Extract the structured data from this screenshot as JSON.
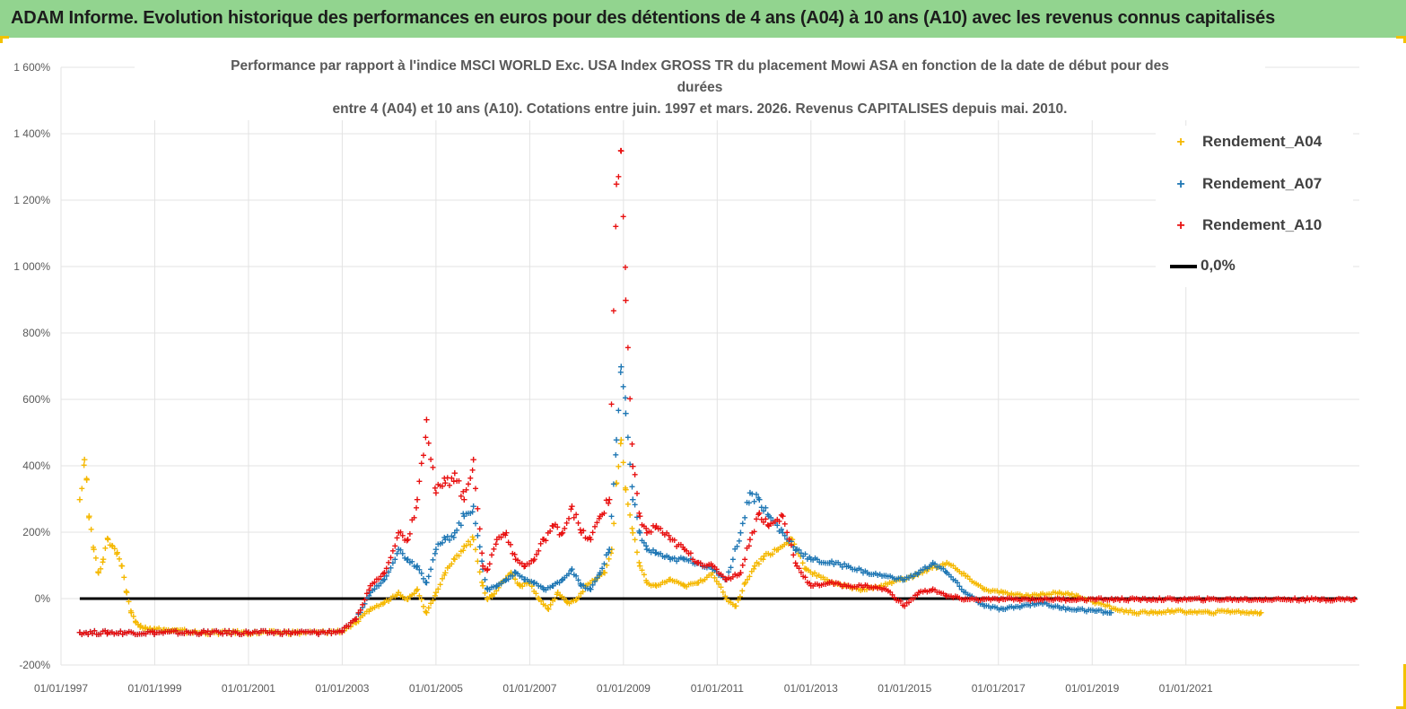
{
  "header": {
    "title": "ADAM Informe. Evolution historique des performances en euros pour des détentions de 4 ans (A04) à 10 ans (A10) avec les revenus connus capitalisés"
  },
  "chart_data": {
    "type": "scatter",
    "title_lines": [
      "Performance par rapport à l'indice MSCI WORLD Exc. USA Index GROSS TR  du placement Mowi ASA en fonction de la date de début pour des",
      "durées",
      "entre 4 (A04) et 10 ans (A10). Cotations entre juin. 1997 et mars. 2026. Revenus CAPITALISES depuis mai. 2010."
    ],
    "xlabel": "",
    "ylabel": "",
    "x_tick_labels": [
      "01/01/1997",
      "01/01/1999",
      "01/01/2001",
      "01/01/2003",
      "01/01/2005",
      "01/01/2007",
      "01/01/2009",
      "01/01/2011",
      "01/01/2013",
      "01/01/2015",
      "01/01/2017",
      "01/01/2019",
      "01/01/2021"
    ],
    "x_tick_years": [
      1997,
      1999,
      2001,
      2003,
      2005,
      2007,
      2009,
      2011,
      2013,
      2015,
      2017,
      2019,
      2021
    ],
    "xlim": [
      1997,
      2024.7
    ],
    "y_tick_labels": [
      "-200%",
      "0%",
      "200%",
      "400%",
      "600%",
      "800%",
      "1 000%",
      "1 200%",
      "1 400%",
      "1 600%"
    ],
    "y_tick_values": [
      -200,
      0,
      200,
      400,
      600,
      800,
      1000,
      1200,
      1400,
      1600
    ],
    "ylim": [
      -200,
      1600
    ],
    "grid": true,
    "legend_position": "top-right",
    "series": [
      {
        "name": "Rendement_A04",
        "color": "#f5b800",
        "marker": "+",
        "x": [
          1997.4,
          1997.5,
          1997.55,
          1997.6,
          1997.7,
          1997.8,
          1997.9,
          1998.0,
          1998.1,
          1998.2,
          1998.3,
          1998.4,
          1998.5,
          1998.6,
          1998.7,
          1998.8,
          1998.9,
          1999.0,
          1999.2,
          1999.5,
          2000.0,
          2001.0,
          2002.0,
          2002.5,
          2003.0,
          2003.3,
          2003.6,
          2003.9,
          2004.2,
          2004.4,
          2004.6,
          2004.8,
          2005.0,
          2005.2,
          2005.4,
          2005.6,
          2005.8,
          2006.0,
          2006.1,
          2006.2,
          2006.4,
          2006.6,
          2006.8,
          2007.0,
          2007.2,
          2007.4,
          2007.6,
          2007.8,
          2008.0,
          2008.2,
          2008.4,
          2008.6,
          2008.75,
          2008.85,
          2008.95,
          2009.05,
          2009.2,
          2009.35,
          2009.5,
          2009.7,
          2010.0,
          2010.3,
          2010.6,
          2010.9,
          2011.2,
          2011.4,
          2011.6,
          2011.8,
          2012.0,
          2012.3,
          2012.6,
          2012.9,
          2013.3,
          2013.7,
          2014.1,
          2014.5,
          2014.9,
          2015.2,
          2015.5,
          2015.9,
          2016.3,
          2016.7,
          2017.1,
          2017.5,
          2017.9,
          2018.3,
          2018.7,
          2019.1,
          2019.5,
          2019.9,
          2020.3,
          2020.7,
          2021.1,
          2021.5,
          2021.9,
          2022.3,
          2022.6
        ],
        "y": [
          300,
          420,
          360,
          250,
          150,
          80,
          120,
          180,
          160,
          140,
          100,
          20,
          -40,
          -70,
          -80,
          -85,
          -88,
          -90,
          -92,
          -95,
          -100,
          -100,
          -100,
          -100,
          -95,
          -70,
          -30,
          -10,
          20,
          0,
          30,
          -40,
          20,
          80,
          120,
          160,
          180,
          40,
          0,
          10,
          50,
          80,
          40,
          50,
          0,
          -30,
          20,
          -10,
          0,
          40,
          60,
          80,
          150,
          350,
          480,
          330,
          200,
          100,
          50,
          40,
          60,
          40,
          50,
          80,
          0,
          -20,
          50,
          100,
          130,
          150,
          180,
          90,
          60,
          40,
          30,
          40,
          60,
          70,
          90,
          110,
          70,
          30,
          20,
          10,
          15,
          20,
          10,
          -10,
          -30,
          -40,
          -40,
          -35,
          -38,
          -40,
          -35,
          -40,
          -40
        ],
        "y_vals": [
          300,
          420,
          360,
          250,
          150,
          80,
          120,
          180,
          160,
          140,
          100,
          20,
          -40,
          -70,
          -80,
          -85,
          -88,
          -90,
          -92,
          -95,
          -100,
          -100,
          -100,
          -100,
          -95,
          -70,
          -30,
          -10,
          20,
          0,
          30,
          -40,
          20,
          80,
          120,
          160,
          180,
          40,
          0,
          10,
          50,
          80,
          40,
          50,
          0,
          -30,
          20,
          -10,
          0,
          40,
          60,
          80,
          150,
          350,
          480,
          330,
          200,
          100,
          50,
          40,
          60,
          40,
          50,
          80,
          0,
          -20,
          50,
          100,
          130,
          150,
          180,
          90,
          60,
          40,
          30,
          40,
          60,
          70,
          90,
          110,
          70,
          30,
          20,
          10,
          15,
          20,
          10,
          -10,
          -30,
          -40,
          -40,
          -35,
          -38,
          -40,
          -35,
          -40,
          -40
        ]
      },
      {
        "name": "Rendement_A07",
        "color": "#1f77b4",
        "marker": "+",
        "x": [
          1997.4,
          1998.0,
          1999.0,
          2000.0,
          2001.0,
          2002.0,
          2002.5,
          2003.0,
          2003.3,
          2003.6,
          2003.9,
          2004.2,
          2004.4,
          2004.6,
          2004.8,
          2005.0,
          2005.2,
          2005.4,
          2005.6,
          2005.8,
          2006.0,
          2006.1,
          2006.3,
          2006.5,
          2006.7,
          2006.9,
          2007.1,
          2007.3,
          2007.5,
          2007.7,
          2007.9,
          2008.1,
          2008.3,
          2008.5,
          2008.7,
          2008.85,
          2008.95,
          2009.05,
          2009.2,
          2009.35,
          2009.5,
          2009.7,
          2010.0,
          2010.3,
          2010.6,
          2010.9,
          2011.2,
          2011.5,
          2011.7,
          2011.9,
          2012.1,
          2012.4,
          2012.7,
          2013.0,
          2013.4,
          2013.8,
          2014.2,
          2014.6,
          2015.0,
          2015.3,
          2015.6,
          2015.9,
          2016.3,
          2016.7,
          2017.1,
          2017.5,
          2017.9,
          2018.3,
          2018.7,
          2019.1,
          2019.4
        ],
        "y_vals": [
          -100,
          -100,
          -100,
          -100,
          -100,
          -100,
          -100,
          -95,
          -60,
          20,
          60,
          150,
          120,
          100,
          50,
          150,
          180,
          200,
          250,
          280,
          90,
          30,
          40,
          60,
          80,
          60,
          50,
          30,
          40,
          60,
          90,
          40,
          30,
          80,
          150,
          480,
          700,
          560,
          300,
          200,
          150,
          140,
          120,
          120,
          110,
          90,
          60,
          200,
          320,
          300,
          250,
          200,
          150,
          120,
          110,
          100,
          80,
          70,
          60,
          80,
          110,
          80,
          20,
          -20,
          -30,
          -20,
          -10,
          -25,
          -30,
          -35,
          -40
        ]
      },
      {
        "name": "Rendement_A10",
        "color": "#e81010",
        "marker": "+",
        "x": [
          1997.4,
          1998.0,
          1999.0,
          2000.0,
          2001.0,
          2002.0,
          2002.5,
          2003.0,
          2003.3,
          2003.6,
          2003.9,
          2004.2,
          2004.4,
          2004.6,
          2004.8,
          2005.0,
          2005.2,
          2005.4,
          2005.6,
          2005.8,
          2006.0,
          2006.1,
          2006.3,
          2006.5,
          2006.7,
          2006.9,
          2007.1,
          2007.3,
          2007.5,
          2007.7,
          2007.9,
          2008.1,
          2008.3,
          2008.5,
          2008.7,
          2008.85,
          2008.95,
          2009.05,
          2009.2,
          2009.35,
          2009.5,
          2009.7,
          2010.0,
          2010.3,
          2010.6,
          2010.9,
          2011.2,
          2011.5,
          2011.7,
          2011.9,
          2012.1,
          2012.4,
          2012.7,
          2013.0,
          2013.4,
          2013.8,
          2014.2,
          2014.6,
          2015.0,
          2015.3,
          2015.6,
          2015.9,
          2016.3,
          2016.7,
          2017.1,
          2017.5,
          2017.9,
          2018.3,
          2018.7,
          2019.1,
          2019.5,
          2019.9,
          2020.3,
          2020.7,
          2021.1,
          2021.5,
          2021.9,
          2022.3,
          2022.7,
          2023.1,
          2023.5,
          2023.9,
          2024.3,
          2024.6
        ],
        "y_vals": [
          -100,
          -100,
          -100,
          -100,
          -100,
          -100,
          -100,
          -95,
          -60,
          40,
          80,
          200,
          180,
          300,
          540,
          320,
          350,
          380,
          300,
          420,
          100,
          90,
          180,
          200,
          120,
          100,
          120,
          180,
          220,
          200,
          280,
          200,
          180,
          250,
          300,
          1250,
          1350,
          900,
          400,
          250,
          200,
          220,
          180,
          150,
          110,
          100,
          60,
          80,
          180,
          260,
          220,
          250,
          100,
          40,
          50,
          40,
          40,
          30,
          -20,
          20,
          30,
          10,
          0,
          0,
          0,
          0,
          0,
          0,
          0,
          0,
          0,
          0,
          0,
          0,
          0,
          0,
          0,
          0,
          0,
          0,
          0,
          0,
          0,
          0
        ]
      },
      {
        "name": "0,0%",
        "color": "#000000",
        "marker": "line",
        "x": [
          1997.4,
          2024.65
        ],
        "y_vals": [
          0,
          0
        ]
      }
    ]
  },
  "legend": {
    "a04": "Rendement_A04",
    "a07": "Rendement_A07",
    "a10": "Rendement_A10",
    "zero": "0,0%"
  }
}
